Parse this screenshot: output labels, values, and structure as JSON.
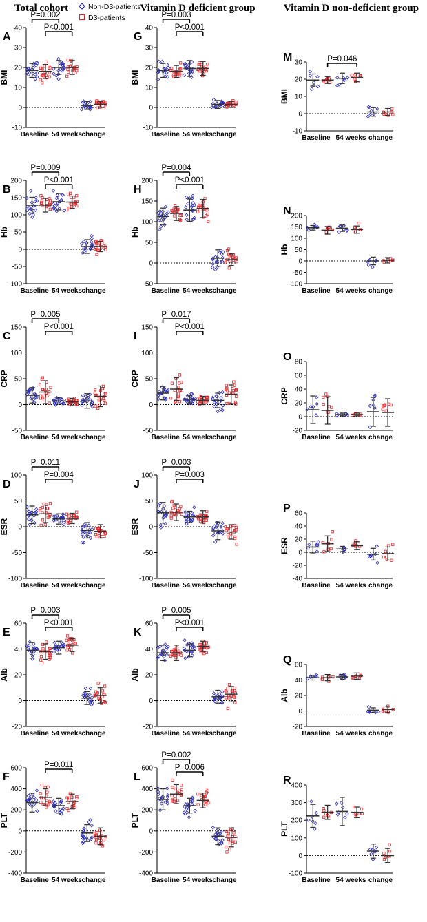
{
  "column_titles": [
    "Total cohort",
    "Vitamin D deficient group",
    "Vitamin D non-deficient group"
  ],
  "legend": [
    {
      "label": "Non-D3-patients",
      "color": "#2b2bb8",
      "marker": "diamond-open"
    },
    {
      "label": "D3-patients",
      "color": "#e0242a",
      "marker": "square-open"
    }
  ],
  "colors": {
    "non_d3": "#2b2bb8",
    "d3": "#e0242a",
    "errorbar": "#333333"
  },
  "chart_data": [
    {
      "panel": "A",
      "type": "scatter",
      "ylabel": "BMI",
      "xlabel_groups": [
        "Baseline",
        "54 weeks",
        "change"
      ],
      "ylim": [
        -10,
        40
      ],
      "yticks": [
        -10,
        0,
        10,
        20,
        30,
        40
      ],
      "series": [
        {
          "name": "Non-D3-patients",
          "values": [
            18.5,
            20,
            1
          ]
        },
        {
          "name": "D3-patients",
          "values": [
            18,
            20,
            1.5
          ]
        }
      ],
      "sd": [
        [
          3.5,
          3.5
        ],
        [
          3.5,
          3.5
        ],
        [
          2,
          1.5
        ]
      ],
      "annotations": [
        {
          "text": "P=0.002",
          "from": [
            0,
            0
          ],
          "to": [
            1,
            0
          ]
        },
        {
          "text": "P<0.001",
          "from": [
            0,
            1
          ],
          "to": [
            1,
            1
          ]
        }
      ]
    },
    {
      "panel": "G",
      "type": "scatter",
      "ylabel": "BMI",
      "xlabel_groups": [
        "Baseline",
        "54 weeks",
        "change"
      ],
      "ylim": [
        -10,
        40
      ],
      "yticks": [
        -10,
        0,
        10,
        20,
        30,
        40
      ],
      "series": [
        {
          "name": "Non-D3-patients",
          "values": [
            18.5,
            19.5,
            1.5
          ]
        },
        {
          "name": "D3-patients",
          "values": [
            18,
            19.5,
            1.5
          ]
        }
      ],
      "sd": [
        [
          3.5,
          3
        ],
        [
          4,
          3.5
        ],
        [
          2,
          1.5
        ]
      ],
      "annotations": [
        {
          "text": "P=0.003",
          "from": [
            0,
            0
          ],
          "to": [
            1,
            0
          ]
        },
        {
          "text": "P<0.001",
          "from": [
            0,
            1
          ],
          "to": [
            1,
            1
          ]
        }
      ]
    },
    {
      "panel": "M",
      "type": "scatter",
      "ylabel": "BMI",
      "xlabel_groups": [
        "Baseline",
        "54 weeks",
        "change"
      ],
      "ylim": [
        -10,
        30
      ],
      "yticks": [
        -10,
        0,
        10,
        20,
        30
      ],
      "series": [
        {
          "name": "Non-D3-patients",
          "values": [
            19.5,
            20.5,
            1
          ]
        },
        {
          "name": "D3-patients",
          "values": [
            19.5,
            21,
            1
          ]
        }
      ],
      "sd": [
        [
          3.5,
          2
        ],
        [
          3,
          2.5
        ],
        [
          2.5,
          2
        ]
      ],
      "annotations": [
        {
          "text": "P=0.046",
          "from": [
            0,
            1
          ],
          "to": [
            1,
            1
          ]
        }
      ]
    },
    {
      "panel": "B",
      "type": "scatter",
      "ylabel": "Hb",
      "xlabel_groups": [
        "Baseline",
        "54 weeks",
        "change"
      ],
      "ylim": [
        -100,
        200
      ],
      "yticks": [
        -100,
        -50,
        0,
        50,
        100,
        150,
        200
      ],
      "series": [
        {
          "name": "Non-D3-patients",
          "values": [
            128,
            138,
            8
          ]
        },
        {
          "name": "D3-patients",
          "values": [
            128,
            137,
            8
          ]
        }
      ],
      "sd": [
        [
          23,
          20
        ],
        [
          24,
          18
        ],
        [
          20,
          15
        ]
      ],
      "annotations": [
        {
          "text": "P=0.009",
          "from": [
            0,
            0
          ],
          "to": [
            1,
            0
          ]
        },
        {
          "text": "P<0.001",
          "from": [
            0,
            1
          ],
          "to": [
            1,
            1
          ]
        }
      ]
    },
    {
      "panel": "H",
      "type": "scatter",
      "ylabel": "Hb",
      "xlabel_groups": [
        "Baseline",
        "54 weeks",
        "change"
      ],
      "ylim": [
        -50,
        200
      ],
      "yticks": [
        -50,
        0,
        50,
        100,
        150,
        200
      ],
      "series": [
        {
          "name": "Non-D3-patients",
          "values": [
            113,
            128,
            12
          ]
        },
        {
          "name": "D3-patients",
          "values": [
            120,
            132,
            8
          ]
        }
      ],
      "sd": [
        [
          20,
          17
        ],
        [
          27,
          22
        ],
        [
          20,
          14
        ]
      ],
      "annotations": [
        {
          "text": "P=0.004",
          "from": [
            0,
            0
          ],
          "to": [
            1,
            0
          ]
        },
        {
          "text": "P<0.001",
          "from": [
            0,
            1
          ],
          "to": [
            1,
            1
          ]
        }
      ]
    },
    {
      "panel": "N",
      "type": "scatter",
      "ylabel": "Hb",
      "xlabel_groups": [
        "Baseline",
        "54 weeks",
        "change"
      ],
      "ylim": [
        -100,
        200
      ],
      "yticks": [
        -100,
        -50,
        0,
        50,
        100,
        150,
        200
      ],
      "series": [
        {
          "name": "Non-D3-patients",
          "values": [
            146,
            144,
            0
          ]
        },
        {
          "name": "D3-patients",
          "values": [
            135,
            138,
            3
          ]
        }
      ],
      "sd": [
        [
          10,
          17
        ],
        [
          14,
          16
        ],
        [
          17,
          12
        ]
      ],
      "annotations": []
    },
    {
      "panel": "C",
      "type": "scatter",
      "ylabel": "CRP",
      "xlabel_groups": [
        "Baseline",
        "54 weeks",
        "change"
      ],
      "ylim": [
        -50,
        150
      ],
      "yticks": [
        -50,
        0,
        50,
        100,
        150
      ],
      "series": [
        {
          "name": "Non-D3-patients",
          "values": [
            18,
            7,
            7
          ]
        },
        {
          "name": "D3-patients",
          "values": [
            24,
            5,
            16
          ]
        }
      ],
      "sd": [
        [
          15,
          22
        ],
        [
          6,
          7
        ],
        [
          14,
          20
        ]
      ],
      "annotations": [
        {
          "text": "P=0.005",
          "from": [
            0,
            0
          ],
          "to": [
            1,
            0
          ]
        },
        {
          "text": "P<0.001",
          "from": [
            0,
            1
          ],
          "to": [
            1,
            1
          ]
        }
      ]
    },
    {
      "panel": "I",
      "type": "scatter",
      "ylabel": "CRP",
      "xlabel_groups": [
        "Baseline",
        "54 weeks",
        "change"
      ],
      "ylim": [
        -50,
        150
      ],
      "yticks": [
        -50,
        0,
        50,
        100,
        150
      ],
      "series": [
        {
          "name": "Non-D3-patients",
          "values": [
            22,
            10,
            8
          ]
        },
        {
          "name": "D3-patients",
          "values": [
            30,
            8,
            20
          ]
        }
      ],
      "sd": [
        [
          13,
          22
        ],
        [
          7,
          8
        ],
        [
          14,
          18
        ]
      ],
      "annotations": [
        {
          "text": "P=0.017",
          "from": [
            0,
            0
          ],
          "to": [
            1,
            0
          ]
        },
        {
          "text": "P<0.001",
          "from": [
            0,
            1
          ],
          "to": [
            1,
            1
          ]
        }
      ]
    },
    {
      "panel": "O",
      "type": "scatter",
      "ylabel": "CRP",
      "xlabel_groups": [
        "Baseline",
        "54 weeks",
        "change"
      ],
      "ylim": [
        -20,
        80
      ],
      "yticks": [
        -20,
        0,
        20,
        40,
        60,
        80
      ],
      "series": [
        {
          "name": "Non-D3-patients",
          "values": [
            10,
            3,
            7
          ]
        },
        {
          "name": "D3-patients",
          "values": [
            9,
            3,
            6
          ]
        }
      ],
      "sd": [
        [
          20,
          20
        ],
        [
          2,
          2
        ],
        [
          21,
          20
        ]
      ],
      "annotations": []
    },
    {
      "panel": "D",
      "type": "scatter",
      "ylabel": "ESR",
      "xlabel_groups": [
        "Baseline",
        "54 weeks",
        "change"
      ],
      "ylim": [
        -100,
        100
      ],
      "yticks": [
        -100,
        -50,
        0,
        50,
        100
      ],
      "series": [
        {
          "name": "Non-D3-patients",
          "values": [
            23,
            15,
            -7
          ]
        },
        {
          "name": "D3-patients",
          "values": [
            25,
            16,
            -9
          ]
        }
      ],
      "sd": [
        [
          17,
          17
        ],
        [
          10,
          10
        ],
        [
          15,
          13
        ]
      ],
      "annotations": [
        {
          "text": "P=0.011",
          "from": [
            0,
            0
          ],
          "to": [
            1,
            0
          ]
        },
        {
          "text": "P=0.004",
          "from": [
            0,
            1
          ],
          "to": [
            1,
            1
          ]
        }
      ]
    },
    {
      "panel": "J",
      "type": "scatter",
      "ylabel": "ESR",
      "xlabel_groups": [
        "Baseline",
        "54 weeks",
        "change"
      ],
      "ylim": [
        -100,
        100
      ],
      "yticks": [
        -100,
        -50,
        0,
        50,
        100
      ],
      "series": [
        {
          "name": "Non-D3-patients",
          "values": [
            27,
            19,
            -8
          ]
        },
        {
          "name": "D3-patients",
          "values": [
            28,
            19,
            -10
          ]
        }
      ],
      "sd": [
        [
          20,
          16
        ],
        [
          11,
          12
        ],
        [
          17,
          14
        ]
      ],
      "annotations": [
        {
          "text": "P=0.003",
          "from": [
            0,
            0
          ],
          "to": [
            1,
            0
          ]
        },
        {
          "text": "P=0.003",
          "from": [
            0,
            1
          ],
          "to": [
            1,
            1
          ]
        }
      ]
    },
    {
      "panel": "P",
      "type": "scatter",
      "ylabel": "ESR",
      "xlabel_groups": [
        "Baseline",
        "54 weeks",
        "change"
      ],
      "ylim": [
        -40,
        60
      ],
      "yticks": [
        -40,
        -20,
        0,
        20,
        40,
        60
      ],
      "series": [
        {
          "name": "Non-D3-patients",
          "values": [
            8,
            5,
            -3
          ]
        },
        {
          "name": "D3-patients",
          "values": [
            13,
            10,
            -2
          ]
        }
      ],
      "sd": [
        [
          9,
          12
        ],
        [
          4,
          6
        ],
        [
          9,
          10
        ]
      ],
      "annotations": []
    },
    {
      "panel": "E",
      "type": "scatter",
      "ylabel": "Alb",
      "xlabel_groups": [
        "Baseline",
        "54 weeks",
        "change"
      ],
      "ylim": [
        -20,
        60
      ],
      "yticks": [
        -20,
        0,
        20,
        40,
        60
      ],
      "series": [
        {
          "name": "Non-D3-patients",
          "values": [
            39,
            41,
            2
          ]
        },
        {
          "name": "D3-patients",
          "values": [
            38,
            43,
            4
          ]
        }
      ],
      "sd": [
        [
          6,
          6
        ],
        [
          5,
          5
        ],
        [
          5,
          6
        ]
      ],
      "annotations": [
        {
          "text": "P=0.003",
          "from": [
            0,
            0
          ],
          "to": [
            1,
            0
          ]
        },
        {
          "text": "P<0.001",
          "from": [
            0,
            1
          ],
          "to": [
            1,
            1
          ]
        }
      ]
    },
    {
      "panel": "K",
      "type": "scatter",
      "ylabel": "Alb",
      "xlabel_groups": [
        "Baseline",
        "54 weeks",
        "change"
      ],
      "ylim": [
        -20,
        60
      ],
      "yticks": [
        -20,
        0,
        20,
        40,
        60
      ],
      "series": [
        {
          "name": "Non-D3-patients",
          "values": [
            37,
            39,
            3
          ]
        },
        {
          "name": "D3-patients",
          "values": [
            37,
            42,
            5
          ]
        }
      ],
      "sd": [
        [
          6,
          6
        ],
        [
          5,
          4
        ],
        [
          5,
          6
        ]
      ],
      "annotations": [
        {
          "text": "P=0.005",
          "from": [
            0,
            0
          ],
          "to": [
            1,
            0
          ]
        },
        {
          "text": "P<0.001",
          "from": [
            0,
            1
          ],
          "to": [
            1,
            1
          ]
        }
      ]
    },
    {
      "panel": "Q",
      "type": "scatter",
      "ylabel": "Alb",
      "xlabel_groups": [
        "Baseline",
        "54 weeks",
        "change"
      ],
      "ylim": [
        -20,
        60
      ],
      "yticks": [
        -20,
        0,
        20,
        40,
        60
      ],
      "series": [
        {
          "name": "Non-D3-patients",
          "values": [
            43,
            44,
            1
          ]
        },
        {
          "name": "D3-patients",
          "values": [
            43,
            45,
            2
          ]
        }
      ],
      "sd": [
        [
          3,
          4
        ],
        [
          3,
          4
        ],
        [
          3,
          4
        ]
      ],
      "annotations": []
    },
    {
      "panel": "F",
      "type": "scatter",
      "ylabel": "PLT",
      "xlabel_groups": [
        "Baseline",
        "54 weeks",
        "change"
      ],
      "ylim": [
        -400,
        600
      ],
      "yticks": [
        -400,
        -200,
        0,
        200,
        400,
        600
      ],
      "series": [
        {
          "name": "Non-D3-patients",
          "values": [
            270,
            240,
            -20
          ]
        },
        {
          "name": "D3-patients",
          "values": [
            320,
            280,
            -50
          ]
        }
      ],
      "sd": [
        [
          90,
          80
        ],
        [
          70,
          70
        ],
        [
          80,
          80
        ]
      ],
      "annotations": [
        {
          "text": "P=0.011",
          "from": [
            0,
            1
          ],
          "to": [
            1,
            1
          ]
        }
      ]
    },
    {
      "panel": "L",
      "type": "scatter",
      "ylabel": "PLT",
      "xlabel_groups": [
        "Baseline",
        "54 weeks",
        "change"
      ],
      "ylim": [
        -400,
        600
      ],
      "yticks": [
        -400,
        -200,
        0,
        200,
        400,
        600
      ],
      "series": [
        {
          "name": "Non-D3-patients",
          "values": [
            300,
            240,
            -50
          ]
        },
        {
          "name": "D3-patients",
          "values": [
            350,
            290,
            -60
          ]
        }
      ],
      "sd": [
        [
          100,
          90
        ],
        [
          70,
          70
        ],
        [
          80,
          90
        ]
      ],
      "annotations": [
        {
          "text": "P=0.002",
          "from": [
            0,
            0
          ],
          "to": [
            1,
            0
          ]
        },
        {
          "text": "P=0.006",
          "from": [
            0,
            1
          ],
          "to": [
            1,
            1
          ]
        }
      ]
    },
    {
      "panel": "R",
      "type": "scatter",
      "ylabel": "PLT",
      "xlabel_groups": [
        "Baseline",
        "54 weeks",
        "change"
      ],
      "ylim": [
        -100,
        400
      ],
      "yticks": [
        -100,
        0,
        100,
        200,
        300,
        400
      ],
      "series": [
        {
          "name": "Non-D3-patients",
          "values": [
            225,
            250,
            25
          ]
        },
        {
          "name": "D3-patients",
          "values": [
            245,
            245,
            0
          ]
        }
      ],
      "sd": [
        [
          65,
          40
        ],
        [
          80,
          30
        ],
        [
          40,
          40
        ]
      ],
      "annotations": []
    }
  ]
}
